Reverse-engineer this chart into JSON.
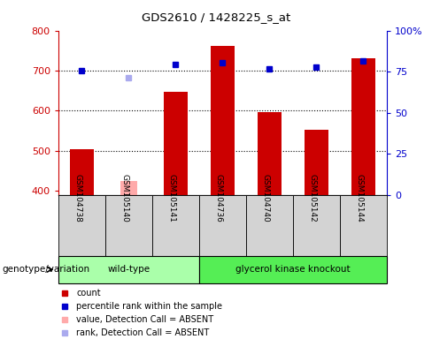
{
  "title": "GDS2610 / 1428225_s_at",
  "samples": [
    "GSM104738",
    "GSM105140",
    "GSM105141",
    "GSM104736",
    "GSM104740",
    "GSM105142",
    "GSM105144"
  ],
  "groups": [
    {
      "name": "wild-type",
      "count": 3
    },
    {
      "name": "glycerol kinase knockout",
      "count": 4
    }
  ],
  "count_values": [
    505,
    null,
    648,
    762,
    597,
    552,
    730
  ],
  "count_absent_values": [
    null,
    425,
    null,
    null,
    null,
    null,
    null
  ],
  "rank_values": [
    700,
    null,
    715,
    720,
    705,
    708,
    725
  ],
  "rank_absent_values": [
    null,
    682,
    null,
    null,
    null,
    null,
    null
  ],
  "ylim_left": [
    390,
    800
  ],
  "ylim_right": [
    0,
    100
  ],
  "yticks_left": [
    400,
    500,
    600,
    700,
    800
  ],
  "yticks_right": [
    0,
    25,
    50,
    75,
    100
  ],
  "color_count": "#cc0000",
  "color_count_absent": "#ffaaaa",
  "color_rank": "#0000cc",
  "color_rank_absent": "#aaaaee",
  "group_colors": [
    "#aaffaa",
    "#55ee55"
  ],
  "sample_bg": "#d3d3d3",
  "legend_items": [
    {
      "label": "count",
      "color": "#cc0000"
    },
    {
      "label": "percentile rank within the sample",
      "color": "#0000cc"
    },
    {
      "label": "value, Detection Call = ABSENT",
      "color": "#ffaaaa"
    },
    {
      "label": "rank, Detection Call = ABSENT",
      "color": "#aaaaee"
    }
  ],
  "bar_width": 0.5,
  "rank_marker_size": 5,
  "dotted_lines": [
    500,
    600,
    700
  ]
}
